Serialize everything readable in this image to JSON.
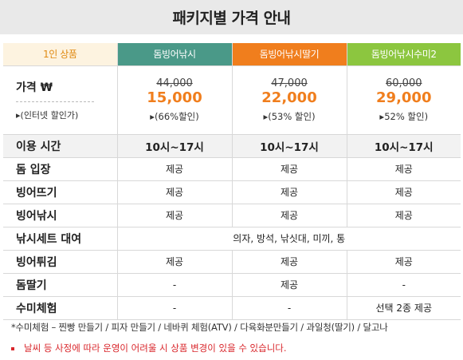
{
  "title": "패키지별 가격 안내",
  "columns": [
    "1인 상품",
    "돔빙어낚시",
    "돔빙어낚시딸기",
    "돔빙어낚시수미2"
  ],
  "price": {
    "label": "가격 ₩",
    "sublabel": "▸(인터넷 할인가)",
    "packages": [
      {
        "original": "44,000",
        "sale": "15,000",
        "discount": "▸(66%할인)"
      },
      {
        "original": "47,000",
        "sale": "22,000",
        "discount": "▸(53% 할인)"
      },
      {
        "original": "60,000",
        "sale": "29,000",
        "discount": "▸52% 할인)"
      }
    ]
  },
  "rows": [
    {
      "label": "이용 시간",
      "shade": true,
      "time": true,
      "cells": [
        "10시~17시",
        "10시~17시",
        "10시~17시"
      ]
    },
    {
      "label": "돔 입장",
      "cells": [
        "제공",
        "제공",
        "제공"
      ]
    },
    {
      "label": "빙어뜨기",
      "cells": [
        "제공",
        "제공",
        "제공"
      ]
    },
    {
      "label": "빙어낚시",
      "cells": [
        "제공",
        "제공",
        "제공"
      ]
    },
    {
      "label": "낚시세트 대여",
      "span": "의자, 방석, 낚싯대, 미끼, 통"
    },
    {
      "label": "빙어튀김",
      "cells": [
        "제공",
        "제공",
        "제공"
      ]
    },
    {
      "label": "돔딸기",
      "cells": [
        "-",
        "제공",
        "-"
      ]
    },
    {
      "label": "수미체험",
      "cells": [
        "-",
        "-",
        "선택 2종 제공"
      ]
    }
  ],
  "footnote": "*수미체험 – 찐빵 만들기 / 피자 만들기 / 네바퀴 체험(ATV) / 다육화분만들기 / 과일청(딸기) / 달고나",
  "notice": "날씨 등 사정에 따라 운영이 어려울 시 상품 변경이 있을 수 있습니다."
}
